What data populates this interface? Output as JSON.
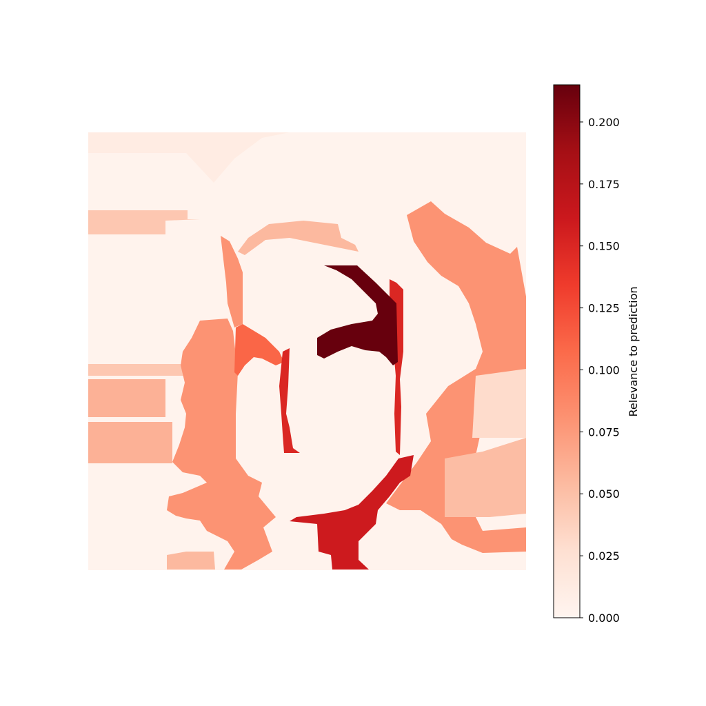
{
  "chart_data": {
    "type": "heatmap",
    "title": "",
    "xlabel": "",
    "ylabel": "",
    "axes_visible": false,
    "colormap": "Reds",
    "colormap_stops": [
      "#fff5f0",
      "#fee0d2",
      "#fcbba1",
      "#fc9272",
      "#fb6a4a",
      "#ef3b2c",
      "#cb181d",
      "#a50f15",
      "#67000d"
    ],
    "colorbar": {
      "label": "Relevance to prediction",
      "range": [
        0.0,
        0.215
      ],
      "ticks": [
        0.0,
        0.025,
        0.05,
        0.075,
        0.1,
        0.125,
        0.15,
        0.175,
        0.2
      ],
      "tick_labels": [
        "0.000",
        "0.025",
        "0.050",
        "0.075",
        "0.100",
        "0.125",
        "0.150",
        "0.175",
        "0.200"
      ],
      "placement": "right"
    },
    "regions": [
      {
        "name": "background",
        "value": 0.003
      },
      {
        "name": "upper-left band",
        "value": 0.012
      },
      {
        "name": "left stripe upper",
        "value": 0.045
      },
      {
        "name": "left stripe middle",
        "value": 0.06
      },
      {
        "name": "left hair",
        "value": 0.08
      },
      {
        "name": "right hair",
        "value": 0.08
      },
      {
        "name": "right lower block",
        "value": 0.052
      },
      {
        "name": "right middle block",
        "value": 0.03
      },
      {
        "name": "face left edge",
        "value": 0.11
      },
      {
        "name": "face left contour",
        "value": 0.15
      },
      {
        "name": "neck and collar",
        "value": 0.16
      },
      {
        "name": "eye region",
        "value": 0.215
      }
    ]
  }
}
